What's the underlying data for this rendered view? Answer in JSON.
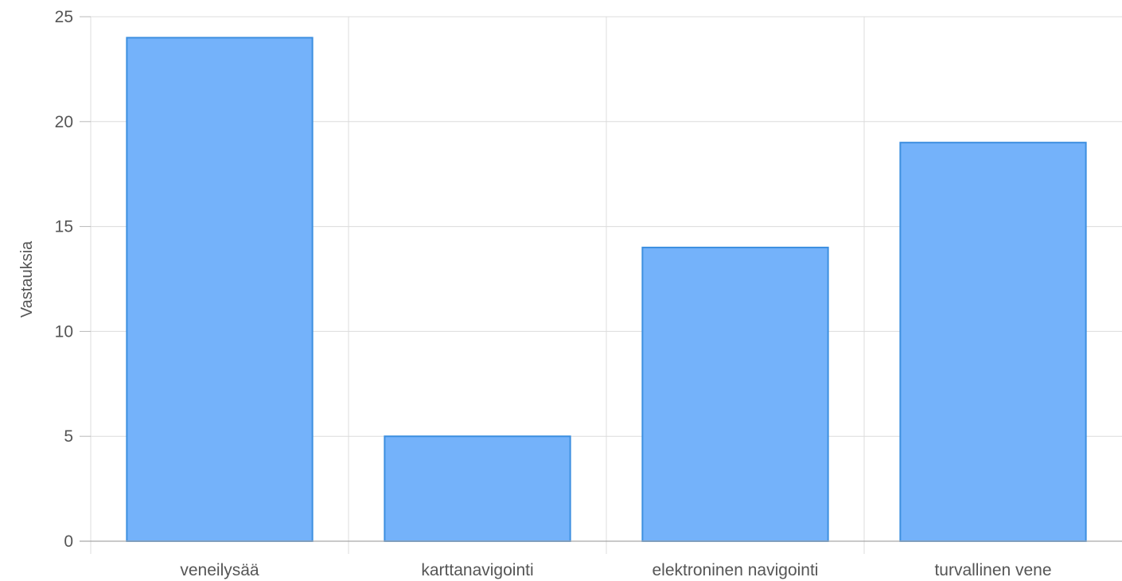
{
  "chart_data": {
    "type": "bar",
    "title": "",
    "xlabel": "",
    "ylabel": "Vastauksia",
    "categories": [
      "veneilysää",
      "karttanavigointi",
      "elektroninen navigointi",
      "turvallinen vene"
    ],
    "values": [
      24,
      5,
      14,
      19
    ],
    "ylim": [
      0,
      25
    ],
    "yticks": [
      0,
      5,
      10,
      15,
      20,
      25
    ],
    "grid": true,
    "legend": "none",
    "colors": {
      "bar_fill": "#74b2fa",
      "bar_stroke": "#3d8fe0",
      "grid": "#dcdcdc",
      "axis": "#a9a9a9",
      "text": "#555555"
    }
  }
}
